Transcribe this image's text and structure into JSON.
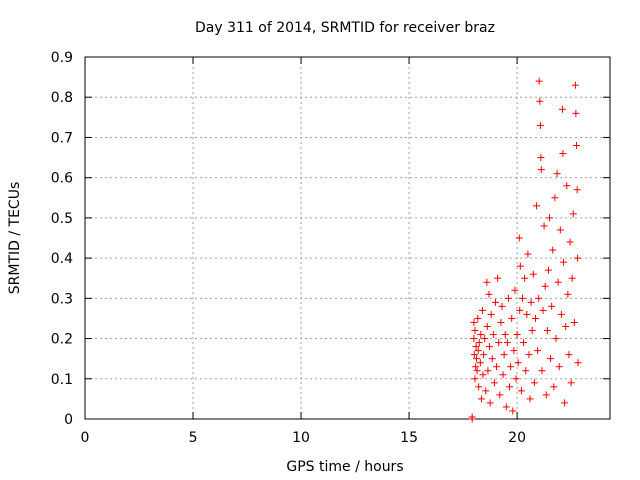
{
  "chart_data": {
    "type": "scatter",
    "title": "Day 311 of 2014, SRMTID for receiver braz",
    "xlabel": "GPS time / hours",
    "ylabel": "SRMTID / TECUs",
    "xlim": [
      0,
      24.3
    ],
    "ylim": [
      0,
      0.9
    ],
    "xticks": [
      0,
      5,
      10,
      15,
      20
    ],
    "yticks": [
      0,
      0.1,
      0.2,
      0.3,
      0.4,
      0.5,
      0.6,
      0.7,
      0.8,
      0.9
    ],
    "grid": true,
    "marker": "plus",
    "color": "#ff0000",
    "series": [
      {
        "name": "braz",
        "points": [
          [
            17.92,
            0.0
          ],
          [
            17.92,
            0.005
          ],
          [
            18.0,
            0.24
          ],
          [
            18.0,
            0.2
          ],
          [
            18.02,
            0.16
          ],
          [
            18.05,
            0.1
          ],
          [
            18.05,
            0.22
          ],
          [
            18.08,
            0.13
          ],
          [
            18.1,
            0.18
          ],
          [
            18.12,
            0.15
          ],
          [
            18.15,
            0.12
          ],
          [
            18.18,
            0.25
          ],
          [
            18.2,
            0.17
          ],
          [
            18.22,
            0.08
          ],
          [
            18.25,
            0.19
          ],
          [
            18.3,
            0.14
          ],
          [
            18.32,
            0.21
          ],
          [
            18.35,
            0.05
          ],
          [
            18.4,
            0.27
          ],
          [
            18.42,
            0.11
          ],
          [
            18.45,
            0.16
          ],
          [
            18.5,
            0.2
          ],
          [
            18.55,
            0.07
          ],
          [
            18.6,
            0.34
          ],
          [
            18.62,
            0.23
          ],
          [
            18.65,
            0.12
          ],
          [
            18.7,
            0.31
          ],
          [
            18.72,
            0.18
          ],
          [
            18.75,
            0.04
          ],
          [
            18.8,
            0.26
          ],
          [
            18.85,
            0.15
          ],
          [
            18.9,
            0.21
          ],
          [
            18.95,
            0.09
          ],
          [
            19.0,
            0.29
          ],
          [
            19.05,
            0.13
          ],
          [
            19.1,
            0.35
          ],
          [
            19.15,
            0.19
          ],
          [
            19.2,
            0.06
          ],
          [
            19.25,
            0.24
          ],
          [
            19.3,
            0.28
          ],
          [
            19.35,
            0.11
          ],
          [
            19.4,
            0.16
          ],
          [
            19.45,
            0.21
          ],
          [
            19.5,
            0.03
          ],
          [
            19.55,
            0.19
          ],
          [
            19.6,
            0.3
          ],
          [
            19.65,
            0.08
          ],
          [
            19.7,
            0.13
          ],
          [
            19.75,
            0.25
          ],
          [
            19.8,
            0.02
          ],
          [
            19.85,
            0.17
          ],
          [
            19.9,
            0.32
          ],
          [
            19.95,
            0.1
          ],
          [
            20.0,
            0.21
          ],
          [
            20.05,
            0.14
          ],
          [
            20.1,
            0.45
          ],
          [
            20.12,
            0.27
          ],
          [
            20.15,
            0.38
          ],
          [
            20.2,
            0.07
          ],
          [
            20.25,
            0.3
          ],
          [
            20.3,
            0.19
          ],
          [
            20.35,
            0.35
          ],
          [
            20.4,
            0.12
          ],
          [
            20.45,
            0.26
          ],
          [
            20.5,
            0.41
          ],
          [
            20.55,
            0.16
          ],
          [
            20.6,
            0.05
          ],
          [
            20.65,
            0.29
          ],
          [
            20.7,
            0.22
          ],
          [
            20.75,
            0.36
          ],
          [
            20.8,
            0.09
          ],
          [
            20.85,
            0.25
          ],
          [
            20.9,
            0.53
          ],
          [
            20.95,
            0.17
          ],
          [
            21.0,
            0.3
          ],
          [
            21.02,
            0.84
          ],
          [
            21.05,
            0.79
          ],
          [
            21.08,
            0.73
          ],
          [
            21.1,
            0.65
          ],
          [
            21.12,
            0.62
          ],
          [
            21.15,
            0.12
          ],
          [
            21.2,
            0.27
          ],
          [
            21.25,
            0.48
          ],
          [
            21.3,
            0.33
          ],
          [
            21.35,
            0.06
          ],
          [
            21.4,
            0.22
          ],
          [
            21.45,
            0.37
          ],
          [
            21.5,
            0.5
          ],
          [
            21.55,
            0.15
          ],
          [
            21.6,
            0.28
          ],
          [
            21.65,
            0.42
          ],
          [
            21.7,
            0.08
          ],
          [
            21.75,
            0.55
          ],
          [
            21.8,
            0.2
          ],
          [
            21.85,
            0.61
          ],
          [
            21.9,
            0.34
          ],
          [
            21.95,
            0.13
          ],
          [
            22.0,
            0.47
          ],
          [
            22.05,
            0.26
          ],
          [
            22.1,
            0.77
          ],
          [
            22.12,
            0.66
          ],
          [
            22.15,
            0.39
          ],
          [
            22.2,
            0.04
          ],
          [
            22.25,
            0.23
          ],
          [
            22.3,
            0.58
          ],
          [
            22.35,
            0.31
          ],
          [
            22.4,
            0.16
          ],
          [
            22.45,
            0.44
          ],
          [
            22.5,
            0.09
          ],
          [
            22.55,
            0.35
          ],
          [
            22.6,
            0.51
          ],
          [
            22.65,
            0.24
          ],
          [
            22.7,
            0.83
          ],
          [
            22.72,
            0.76
          ],
          [
            22.75,
            0.68
          ],
          [
            22.78,
            0.57
          ],
          [
            22.8,
            0.4
          ],
          [
            22.82,
            0.14
          ]
        ]
      }
    ]
  }
}
